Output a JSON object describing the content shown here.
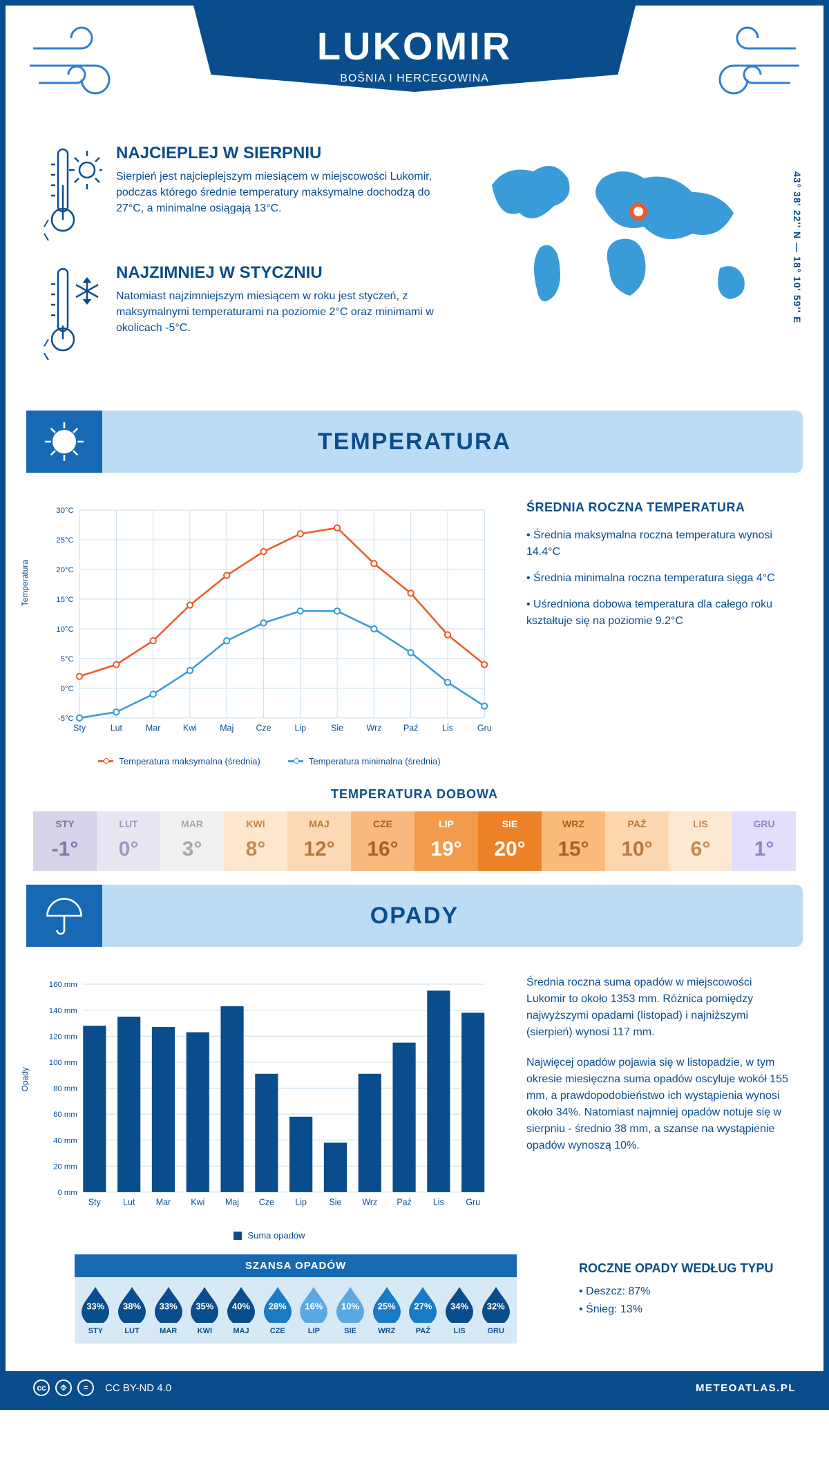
{
  "header": {
    "title": "LUKOMIR",
    "subtitle": "BOŚNIA I HERCEGOWINA"
  },
  "coords": "43° 38' 22'' N — 18° 10' 59'' E",
  "facts": {
    "warm": {
      "title": "NAJCIEPLEJ W SIERPNIU",
      "body": "Sierpień jest najcieplejszym miesiącem w miejscowości Lukomir, podczas którego średnie temperatury maksymalne dochodzą do 27°C, a minimalne osiągają 13°C."
    },
    "cold": {
      "title": "NAJZIMNIEJ W STYCZNIU",
      "body": "Natomiast najzimniejszym miesiącem w roku jest styczeń, z maksymalnymi temperaturami na poziomie 2°C oraz minimami w okolicach -5°C."
    }
  },
  "sections": {
    "temperature": "TEMPERATURA",
    "precip": "OPADY"
  },
  "temp_chart": {
    "type": "line",
    "months": [
      "Sty",
      "Lut",
      "Mar",
      "Kwi",
      "Maj",
      "Cze",
      "Lip",
      "Sie",
      "Wrz",
      "Paź",
      "Lis",
      "Gru"
    ],
    "series_max": {
      "label": "Temperatura maksymalna (średnia)",
      "color": "#f05a28",
      "values": [
        2,
        4,
        8,
        14,
        19,
        23,
        26,
        27,
        21,
        16,
        9,
        4
      ]
    },
    "series_min": {
      "label": "Temperatura minimalna (średnia)",
      "color": "#3a9bd9",
      "values": [
        -5,
        -4,
        -1,
        3,
        8,
        11,
        13,
        13,
        10,
        6,
        1,
        -3
      ]
    },
    "ylabel": "Temperatura",
    "yticks": [
      "-5°C",
      "0°C",
      "5°C",
      "10°C",
      "15°C",
      "20°C",
      "25°C",
      "30°C"
    ],
    "ymin": -5,
    "ymax": 30,
    "grid_color": "#c9dff0",
    "bg": "#ffffff"
  },
  "temp_info": {
    "heading": "ŚREDNIA ROCZNA TEMPERATURA",
    "b1": "• Średnia maksymalna roczna temperatura wynosi 14.4°C",
    "b2": "• Średnia minimalna roczna temperatura sięga 4°C",
    "b3": "• Uśredniona dobowa temperatura dla całego roku kształtuje się na poziomie 9.2°C"
  },
  "daily": {
    "title": "TEMPERATURA DOBOWA",
    "months": [
      "STY",
      "LUT",
      "MAR",
      "KWI",
      "MAJ",
      "CZE",
      "LIP",
      "SIE",
      "WRZ",
      "PAŹ",
      "LIS",
      "GRU"
    ],
    "values": [
      "-1°",
      "0°",
      "3°",
      "8°",
      "12°",
      "16°",
      "19°",
      "20°",
      "15°",
      "10°",
      "6°",
      "1°"
    ],
    "bg_colors": [
      "#d6d3ea",
      "#e9e6f2",
      "#f2efef",
      "#fde7ce",
      "#fcd9b4",
      "#f9b97e",
      "#f39b4d",
      "#ed8228",
      "#fabb7b",
      "#fdd7b0",
      "#fce8d3",
      "#e3defc"
    ],
    "text_colors": [
      "#7a79a3",
      "#9b99bd",
      "#a8a6b1",
      "#c28b4f",
      "#b87838",
      "#a8621f",
      "#ffffff",
      "#ffffff",
      "#a8621f",
      "#b87838",
      "#c28b4f",
      "#8a88c2"
    ]
  },
  "precip_chart": {
    "type": "bar",
    "months": [
      "Sty",
      "Lut",
      "Mar",
      "Kwi",
      "Maj",
      "Cze",
      "Lip",
      "Sie",
      "Wrz",
      "Paź",
      "Lis",
      "Gru"
    ],
    "values": [
      128,
      135,
      127,
      123,
      143,
      91,
      58,
      38,
      91,
      115,
      155,
      138
    ],
    "ylabel": "Opady",
    "ymax": 160,
    "ytick": 20,
    "yticks": [
      "0 mm",
      "20 mm",
      "40 mm",
      "60 mm",
      "80 mm",
      "100 mm",
      "120 mm",
      "140 mm",
      "160 mm"
    ],
    "bar_color": "#0a4d8c",
    "grid_color": "#c9dff0",
    "legend": "Suma opadów"
  },
  "precip_info": {
    "p1": "Średnia roczna suma opadów w miejscowości Lukomir to około 1353 mm. Różnica pomiędzy najwyższymi opadami (listopad) i najniższymi (sierpień) wynosi 117 mm.",
    "p2": "Najwięcej opadów pojawia się w listopadzie, w tym okresie miesięczna suma opadów oscyluje wokół 155 mm, a prawdopodobieństwo ich wystąpienia wynosi około 34%. Natomiast najmniej opadów notuje się w sierpniu - średnio 38 mm, a szanse na wystąpienie opadów wynoszą 10%."
  },
  "chance": {
    "title": "SZANSA OPADÓW",
    "months": [
      "STY",
      "LUT",
      "MAR",
      "KWI",
      "MAJ",
      "CZE",
      "LIP",
      "SIE",
      "WRZ",
      "PAŹ",
      "LIS",
      "GRU"
    ],
    "values": [
      33,
      38,
      33,
      35,
      40,
      28,
      16,
      10,
      25,
      27,
      34,
      32
    ],
    "color_hi": "#0a4d8c",
    "color_mid": "#197ac6",
    "color_lo": "#5aa9e3"
  },
  "precip_type": {
    "heading": "ROCZNE OPADY WEDŁUG TYPU",
    "b1": "• Deszcz: 87%",
    "b2": "• Śnieg: 13%"
  },
  "footer": {
    "license": "CC BY-ND 4.0",
    "brand": "METEOATLAS.PL"
  }
}
